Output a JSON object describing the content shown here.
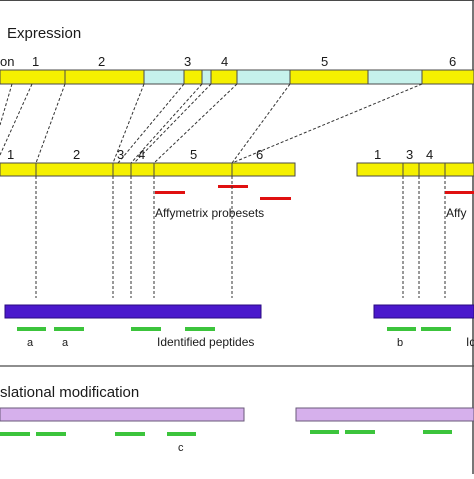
{
  "sections": {
    "expression_title": "Expression",
    "ptm_title": "slational modification"
  },
  "transcript": {
    "left_clip": "on",
    "exon_numbers": [
      "1",
      "2",
      "3",
      "4",
      "5",
      "6"
    ]
  },
  "isoform_a": {
    "exon_numbers": [
      "1",
      "2",
      "3",
      "4",
      "5",
      "6"
    ],
    "probeset_label": "Affymetrix probesets"
  },
  "isoform_b": {
    "exon_numbers": [
      "1",
      "3",
      "4"
    ],
    "probeset_label_clip": "Affy"
  },
  "peptides": {
    "label": "Identified peptides",
    "label_right_clip": "Id",
    "letters_left": [
      "a",
      "a"
    ],
    "letter_right": "b",
    "ptm_letter": "c"
  },
  "colors": {
    "exon_yellow": "#f5f000",
    "intron_cyan": "#c6f2ec",
    "protein_blue": "#4a18cc",
    "ptm_lavender": "#d6b0ec",
    "peptide_green": "#3cc43c",
    "probeset_red": "#e01010",
    "border": "#4a4a4a"
  }
}
